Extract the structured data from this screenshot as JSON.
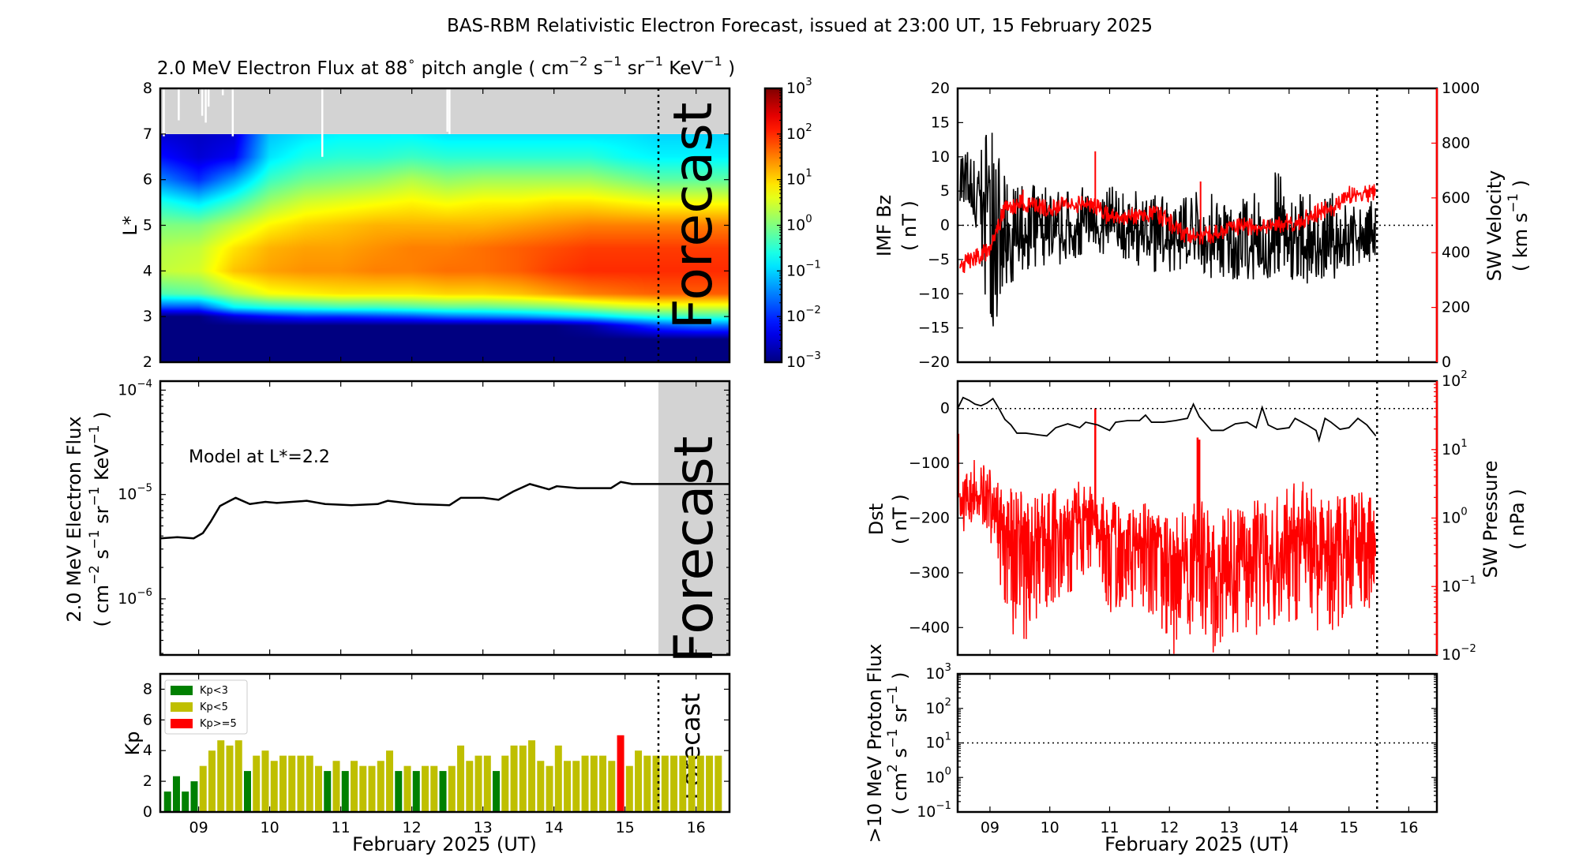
{
  "title": "BAS-RBM Relativistic Electron Forecast, issued at 23:00 UT, 15 February 2025",
  "xaxis": {
    "label": "February 2025 (UT)",
    "tick_values": [
      9,
      10,
      11,
      12,
      13,
      14,
      15,
      16
    ],
    "tick_labels": [
      "09",
      "10",
      "11",
      "12",
      "13",
      "14",
      "15",
      "16"
    ],
    "xlim": [
      8.46,
      16.47
    ],
    "forecast_start": 15.47
  },
  "colors": {
    "kp_low": "#008000",
    "kp_mid": "#bfbf00",
    "kp_high": "#ff0000",
    "secondary": "#ff0000",
    "no_data": "#d3d3d3"
  },
  "chart_data": [
    {
      "id": "flux_heatmap",
      "type": "heatmap",
      "title": "2.0 MeV Electron Flux at 88^{∘} pitch angle ( cm^{−2} s^{−1} sr^{−1} KeV^{−1} )",
      "ylabel": "L*",
      "ylim": [
        2,
        8
      ],
      "yticks": [
        "2",
        "3",
        "4",
        "5",
        "6",
        "7",
        "8"
      ],
      "colormap": "jet",
      "annotation": "Forecast",
      "colorbar": {
        "scale": "log",
        "range": [
          0.001,
          1000
        ],
        "tick_exponents": [
          "−3",
          "−2",
          "−1",
          "0",
          "1",
          "2",
          "3"
        ],
        "tick_base": "10"
      },
      "no_data_above_L": 7,
      "no_data_gaps": [
        {
          "t": 8.51,
          "L_min": 6.95
        },
        {
          "t": 8.72,
          "L_min": 7.3
        },
        {
          "t": 9.05,
          "L_min": 7.4
        },
        {
          "t": 9.1,
          "L_min": 7.25
        },
        {
          "t": 9.14,
          "L_min": 7.6
        },
        {
          "t": 9.34,
          "L_min": 7.85
        },
        {
          "t": 9.48,
          "L_min": 6.95
        },
        {
          "t": 10.74,
          "L_min": 6.5
        },
        {
          "t": 12.5,
          "L_min": 7.05
        },
        {
          "t": 12.53,
          "L_min": 7.0
        }
      ],
      "t": [
        8.5,
        9,
        9.5,
        10,
        10.5,
        11,
        11.5,
        12,
        12.5,
        13,
        13.5,
        14,
        14.5,
        15,
        15.5,
        16,
        16.5
      ],
      "L": [
        2,
        2.5,
        2.8,
        3.0,
        3.2,
        3.5,
        4,
        4.5,
        5,
        5.5,
        6,
        6.5,
        7
      ],
      "log10_flux": [
        [
          -3,
          -3,
          -3,
          -3,
          -3,
          -3,
          -3,
          -3,
          -3,
          -3,
          -3,
          -3,
          -3,
          -3,
          -3,
          -3,
          -3
        ],
        [
          -3,
          -3,
          -3,
          -3,
          -3,
          -3,
          -3,
          -3,
          -3,
          -3,
          -3,
          -3,
          -3,
          -3,
          -3,
          -3,
          -3
        ],
        [
          -3,
          -3,
          -3,
          -3,
          -3,
          -3,
          -3,
          -3,
          -3,
          -3,
          -3,
          -3,
          -2.8,
          -2.3,
          -1.8,
          -1.6,
          -1.6
        ],
        [
          -3,
          -3,
          -2.5,
          -2.2,
          -2,
          -2,
          -1.9,
          -1.8,
          -1.6,
          -1.5,
          -1.4,
          -1.2,
          -1,
          -0.7,
          -0.5,
          -0.4,
          -0.4
        ],
        [
          -1.8,
          -1.8,
          -0.8,
          -0.6,
          -0.5,
          -0.4,
          -0.4,
          -0.3,
          -0.2,
          -0.2,
          -0.1,
          0,
          0.2,
          0.4,
          0.5,
          0.5,
          0.5
        ],
        [
          -0.3,
          -0.2,
          0.3,
          0.7,
          0.8,
          0.9,
          0.9,
          0.9,
          1.0,
          1.0,
          1.1,
          1.3,
          1.5,
          1.6,
          1.7,
          1.7,
          1.7
        ],
        [
          0.4,
          0.5,
          1.1,
          1.3,
          1.4,
          1.4,
          1.5,
          1.5,
          1.6,
          1.6,
          1.7,
          1.9,
          2.0,
          2.0,
          2.0,
          2.0,
          2.0
        ],
        [
          0.3,
          0.4,
          0.9,
          1.2,
          1.3,
          1.3,
          1.4,
          1.5,
          1.5,
          1.6,
          1.7,
          1.8,
          1.9,
          1.9,
          1.9,
          1.9,
          1.9
        ],
        [
          0,
          0,
          0.4,
          0.8,
          1.0,
          1.1,
          1.2,
          1.2,
          1.2,
          1.2,
          1.3,
          1.4,
          1.5,
          1.5,
          1.5,
          1.5,
          1.5
        ],
        [
          -0.6,
          -0.9,
          -0.4,
          0.2,
          0.5,
          0.6,
          0.7,
          0.8,
          0.7,
          0.8,
          0.8,
          0.9,
          0.9,
          0.8,
          0.7,
          0.7,
          0.7
        ],
        [
          -1.5,
          -2.0,
          -1.3,
          -0.4,
          -0.1,
          0,
          0.1,
          0.3,
          0.1,
          0.2,
          0.2,
          0.2,
          0.2,
          0,
          -0.2,
          -0.2,
          -0.2
        ],
        [
          -2.2,
          -2.5,
          -2.3,
          -0.9,
          -0.6,
          -0.5,
          -0.5,
          -0.4,
          -0.5,
          -0.5,
          -0.5,
          -0.5,
          -0.5,
          -0.7,
          -0.8,
          -0.8,
          -0.8
        ],
        [
          -2.5,
          -2.6,
          -2.5,
          -1.1,
          -0.9,
          -0.8,
          -0.8,
          -0.8,
          -0.9,
          -0.9,
          -0.9,
          -0.9,
          -0.9,
          -0.9,
          -1,
          -1,
          -1
        ]
      ]
    },
    {
      "id": "flux_L22",
      "type": "line",
      "ylabel": [
        "2.0 MeV Electron Flux",
        "( cm^{−2} s^{−1} sr^{−1} KeV^{−1} )"
      ],
      "yscale": "log",
      "ylim": [
        2.9e-07,
        0.000122
      ],
      "tick_base": "10",
      "tick_exponents": [
        "−6",
        "−5",
        "−4"
      ],
      "annotation": "Model at L*=2.2",
      "forecast_label": "Forecast",
      "t": [
        8.46,
        8.7,
        8.93,
        9.06,
        9.17,
        9.3,
        9.41,
        9.52,
        9.72,
        9.94,
        10.1,
        10.52,
        10.78,
        11.15,
        11.52,
        11.66,
        12.05,
        12.53,
        12.69,
        13.01,
        13.22,
        13.43,
        13.66,
        13.93,
        14.04,
        14.33,
        14.8,
        14.94,
        15.1,
        16.47
      ],
      "flux": [
        3.8e-06,
        3.9e-06,
        3.8e-06,
        4.27e-06,
        5.5e-06,
        7.76e-06,
        8.5e-06,
        9.3e-06,
        8.1e-06,
        8.5e-06,
        8.3e-06,
        8.7e-06,
        8.1e-06,
        7.9e-06,
        8.1e-06,
        8.7e-06,
        8.1e-06,
        7.9e-06,
        9.3e-06,
        9.3e-06,
        8.9e-06,
        1.07e-05,
        1.26e-05,
        1.12e-05,
        1.2e-05,
        1.15e-05,
        1.15e-05,
        1.32e-05,
        1.26e-05,
        1.26e-05
      ]
    },
    {
      "id": "kp",
      "type": "bar",
      "ylabel": "Kp",
      "ylim": [
        0,
        9
      ],
      "yticks": [
        "0",
        "2",
        "4",
        "6",
        "8"
      ],
      "legend": {
        "placement": "top-left",
        "entries": [
          "Kp<3",
          "Kp<5",
          "Kp>=5"
        ]
      },
      "forecast_label": "Forecast",
      "first_bar_center": 8.5625,
      "bar_interval_days": 0.125,
      "values": [
        1.33,
        2.33,
        1.33,
        2.0,
        3.0,
        4.0,
        4.67,
        4.33,
        4.67,
        2.67,
        3.67,
        4.0,
        3.33,
        3.67,
        3.67,
        3.67,
        3.67,
        3.0,
        2.67,
        3.33,
        2.67,
        3.33,
        3.0,
        3.0,
        3.33,
        4.0,
        2.67,
        3.0,
        2.67,
        3.0,
        3.0,
        2.67,
        3.0,
        4.33,
        3.33,
        3.67,
        3.67,
        2.67,
        3.67,
        4.33,
        4.33,
        4.67,
        3.33,
        3.0,
        4.33,
        3.33,
        3.33,
        3.67,
        3.67,
        3.67,
        3.33,
        5.0,
        3.0,
        4.0,
        3.67,
        3.67,
        3.67,
        3.67,
        3.67,
        3.67,
        3.67,
        3.67,
        3.67
      ]
    },
    {
      "id": "imf_sw_velocity",
      "type": "line",
      "ylabel_left": [
        "IMF Bz",
        "( nT )"
      ],
      "ylabel_right": [
        "SW Velocity",
        "( km s^{−1} )"
      ],
      "ylim_left": [
        -20,
        20
      ],
      "yticks_left": [
        "−20",
        "−15",
        "−10",
        "−5",
        "0",
        "5",
        "10",
        "15",
        "20"
      ],
      "ylim_right": [
        0,
        1000
      ],
      "yticks_right": [
        "0",
        "200",
        "400",
        "600",
        "800",
        "1000"
      ],
      "t": [
        8.5,
        8.75,
        9,
        9.25,
        9.5,
        9.75,
        10,
        10.25,
        10.5,
        10.75,
        11,
        11.25,
        11.5,
        11.75,
        12,
        12.25,
        12.5,
        12.75,
        13,
        13.25,
        13.5,
        13.75,
        14,
        14.25,
        14.5,
        14.75,
        15,
        15.25,
        15.45
      ],
      "bz_mean": [
        8,
        2,
        5,
        -5,
        -2,
        -1,
        -2,
        -2,
        -1,
        0,
        -1,
        -1,
        -1,
        -2,
        -2,
        -2,
        -3,
        -2,
        -3,
        -3,
        -4,
        -2,
        -3,
        -3,
        -3,
        -3,
        -2,
        -2,
        -2
      ],
      "bz_min": [
        3,
        -3,
        -16,
        -14,
        -7,
        -7,
        -6,
        -6,
        -5,
        -5,
        -5,
        -6,
        -6,
        -7,
        -7,
        -7,
        -8,
        -8,
        -8,
        -8,
        -9,
        -8,
        -8,
        -9,
        -8,
        -8,
        -7,
        -6,
        -5
      ],
      "bz_max": [
        13,
        10,
        16,
        7,
        6,
        6,
        7,
        5,
        6,
        5,
        6,
        5,
        5,
        5,
        5,
        6,
        5,
        5,
        4,
        5,
        5,
        9,
        5,
        5,
        4,
        5,
        3,
        3,
        4
      ],
      "velocity": [
        350,
        380,
        410,
        560,
        580,
        570,
        560,
        570,
        575,
        570,
        530,
        530,
        540,
        550,
        510,
        470,
        460,
        470,
        490,
        500,
        480,
        500,
        510,
        520,
        550,
        560,
        610,
        620,
        620
      ],
      "velocity_spikes": [
        [
          9.55,
          630
        ],
        [
          10.76,
          770
        ],
        [
          12.52,
          660
        ]
      ]
    },
    {
      "id": "dst_sw_pressure",
      "type": "line",
      "ylabel_left": [
        "Dst",
        "( nT )"
      ],
      "ylabel_right": [
        "SW Pressure",
        "( nPa )"
      ],
      "ylim_left": [
        -450,
        50
      ],
      "yticks_left": [
        "−400",
        "−300",
        "−200",
        "−100",
        "0"
      ],
      "ylim_right": [
        0.01,
        100
      ],
      "right_scale": "log",
      "right_tick_base": "10",
      "right_tick_exponents": [
        "−2",
        "−1",
        "0",
        "1",
        "2"
      ],
      "dst_t": [
        8.46,
        8.55,
        8.65,
        8.75,
        8.85,
        8.95,
        9.05,
        9.15,
        9.25,
        9.35,
        9.45,
        9.6,
        9.8,
        9.95,
        10.1,
        10.3,
        10.5,
        10.6,
        10.8,
        11.0,
        11.1,
        11.3,
        11.5,
        11.6,
        11.7,
        11.9,
        12.1,
        12.3,
        12.4,
        12.5,
        12.7,
        12.9,
        13.1,
        13.3,
        13.45,
        13.55,
        13.65,
        13.8,
        14.0,
        14.1,
        14.3,
        14.45,
        14.5,
        14.6,
        14.7,
        14.85,
        15.0,
        15.15,
        15.3,
        15.45
      ],
      "dst": [
        0,
        20,
        15,
        8,
        5,
        10,
        18,
        0,
        -20,
        -30,
        -45,
        -45,
        -48,
        -50,
        -35,
        -28,
        -35,
        -25,
        -30,
        -40,
        -25,
        -22,
        -22,
        -12,
        -25,
        -25,
        -22,
        -18,
        8,
        -15,
        -40,
        -40,
        -28,
        -25,
        -35,
        2,
        -30,
        -38,
        -35,
        -18,
        -30,
        -40,
        -58,
        -18,
        -25,
        -38,
        -35,
        -18,
        -30,
        -50
      ],
      "pressure_t": [
        8.5,
        8.75,
        9,
        9.25,
        9.5,
        9.75,
        10,
        10.25,
        10.5,
        10.75,
        11,
        11.25,
        11.5,
        11.75,
        12,
        12.25,
        12.5,
        12.75,
        13,
        13.25,
        13.5,
        13.75,
        14,
        14.25,
        14.5,
        14.75,
        15,
        15.25,
        15.45
      ],
      "pressure_mean": [
        2,
        2.2,
        2,
        0.5,
        0.4,
        0.5,
        0.6,
        0.8,
        1,
        1,
        0.5,
        0.6,
        0.5,
        0.4,
        0.25,
        0.16,
        0.3,
        0.13,
        0.2,
        0.25,
        0.3,
        0.25,
        0.3,
        0.5,
        0.25,
        0.4,
        0.3,
        0.4,
        0.4
      ],
      "pressure_min": [
        0.5,
        1,
        0.5,
        0.04,
        0.01,
        0.03,
        0.05,
        0.06,
        0.1,
        0.25,
        0.04,
        0.05,
        0.05,
        0.03,
        0.01,
        0.01,
        0.03,
        0.01,
        0.016,
        0.025,
        0.016,
        0.02,
        0.025,
        0.04,
        0.02,
        0.02,
        0.04,
        0.04,
        0.05
      ],
      "pressure_max": [
        6,
        8,
        5,
        3,
        2.5,
        2,
        3,
        2.5,
        4,
        3,
        1.6,
        2,
        2,
        1.3,
        1,
        1.3,
        2,
        1,
        1.6,
        2,
        2,
        2,
        3,
        4,
        2.5,
        2.5,
        2.5,
        2.5,
        2
      ],
      "pressure_spikes": [
        [
          8.47,
          17
        ],
        [
          10.76,
          40
        ],
        [
          12.47,
          15
        ],
        [
          12.5,
          14
        ]
      ]
    },
    {
      "id": "proton_flux",
      "type": "line",
      "ylabel": [
        ">10 MeV Proton Flux",
        "( cm^{2} s^{−1} sr^{−1} )"
      ],
      "yscale": "log",
      "ylim": [
        0.1,
        1000
      ],
      "tick_base": "10",
      "tick_exponents": [
        "−1",
        "0",
        "1",
        "2",
        "3"
      ],
      "threshold": 10,
      "values": []
    }
  ]
}
